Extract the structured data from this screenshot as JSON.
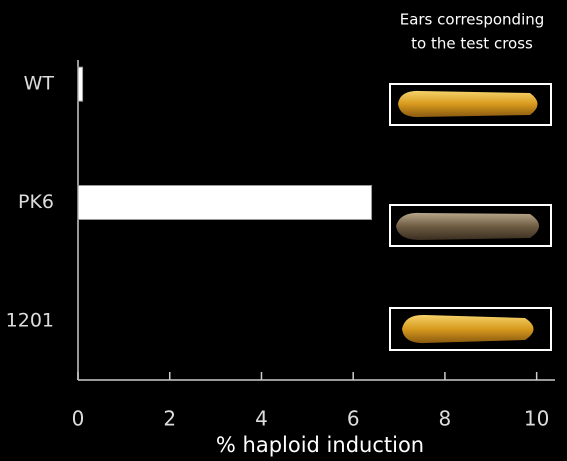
{
  "chart_data": {
    "type": "barh",
    "annotation": [
      "Ears corresponding",
      "to the test cross"
    ],
    "xlabel": "% haploid induction",
    "categories": [
      "WT",
      "PK6",
      "1201"
    ],
    "values": [
      0.1,
      6.4,
      0
    ],
    "color": "#ffffff",
    "xlim": [
      0,
      10.4
    ],
    "xticks": [
      0,
      2,
      4,
      6,
      8,
      10
    ]
  }
}
